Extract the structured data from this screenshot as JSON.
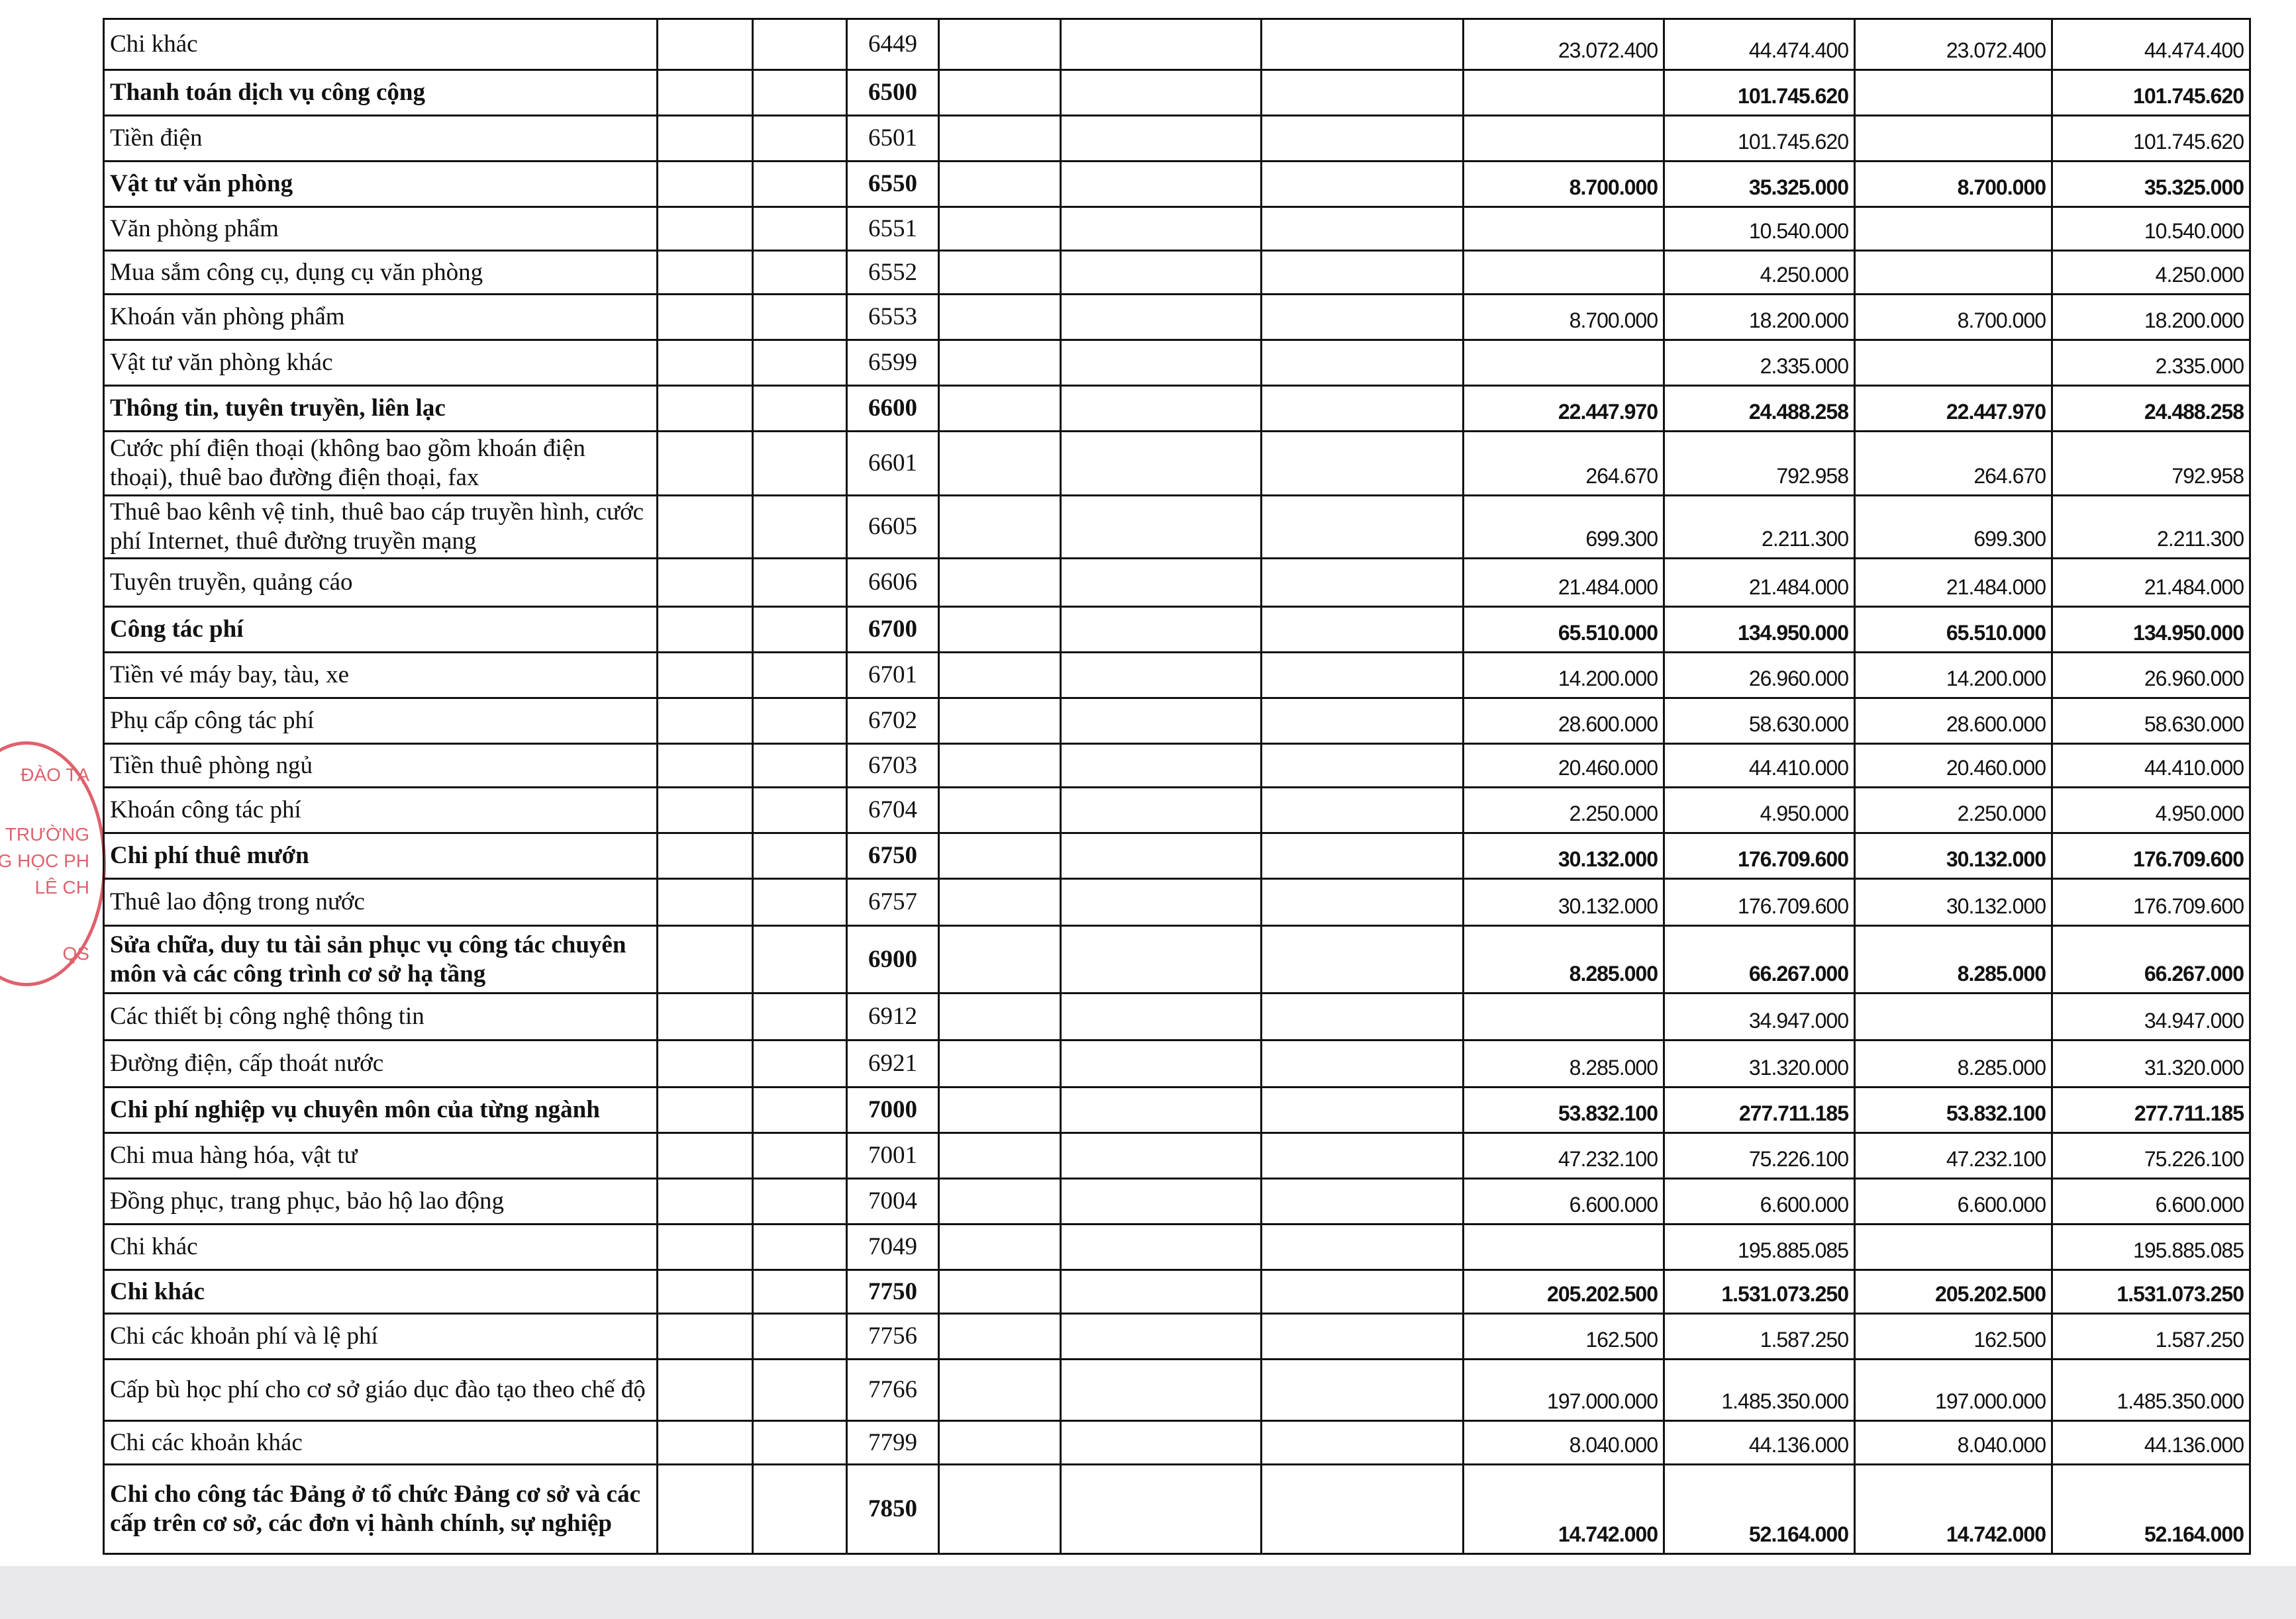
{
  "table": {
    "rows": [
      {
        "label": "Chi khác",
        "code": "6449",
        "values": [
          "23.072.400",
          "44.474.400",
          "23.072.400",
          "44.474.400"
        ]
      },
      {
        "label": "Thanh toán dịch vụ công cộng",
        "code": "6500",
        "values": [
          null,
          "101.745.620",
          null,
          "101.745.620"
        ],
        "bold": true
      },
      {
        "label": "Tiền điện",
        "code": "6501",
        "values": [
          null,
          "101.745.620",
          null,
          "101.745.620"
        ]
      },
      {
        "label": "Vật tư văn phòng",
        "code": "6550",
        "values": [
          "8.700.000",
          "35.325.000",
          "8.700.000",
          "35.325.000"
        ],
        "bold": true
      },
      {
        "label": "Văn phòng phẩm",
        "code": "6551",
        "values": [
          null,
          "10.540.000",
          null,
          "10.540.000"
        ]
      },
      {
        "label": "Mua sắm công cụ, dụng cụ văn phòng",
        "code": "6552",
        "values": [
          null,
          "4.250.000",
          null,
          "4.250.000"
        ]
      },
      {
        "label": "Khoán văn phòng phẩm",
        "code": "6553",
        "values": [
          "8.700.000",
          "18.200.000",
          "8.700.000",
          "18.200.000"
        ]
      },
      {
        "label": "Vật tư văn phòng khác",
        "code": "6599",
        "values": [
          null,
          "2.335.000",
          null,
          "2.335.000"
        ]
      },
      {
        "label": "Thông tin, tuyên truyền, liên lạc",
        "code": "6600",
        "values": [
          "22.447.970",
          "24.488.258",
          "22.447.970",
          "24.488.258"
        ],
        "bold": true
      },
      {
        "label": "Cước phí điện thoại (không bao gồm khoán điện thoại), thuê bao đường điện thoại, fax",
        "code": "6601",
        "values": [
          "264.670",
          "792.958",
          "264.670",
          "792.958"
        ]
      },
      {
        "label": "Thuê bao kênh vệ tinh, thuê bao cáp truyền hình, cước phí Internet, thuê đường truyền mạng",
        "code": "6605",
        "values": [
          "699.300",
          "2.211.300",
          "699.300",
          "2.211.300"
        ]
      },
      {
        "label": "Tuyên truyền, quảng cáo",
        "code": "6606",
        "values": [
          "21.484.000",
          "21.484.000",
          "21.484.000",
          "21.484.000"
        ]
      },
      {
        "label": "Công tác phí",
        "code": "6700",
        "values": [
          "65.510.000",
          "134.950.000",
          "65.510.000",
          "134.950.000"
        ],
        "bold": true
      },
      {
        "label": "Tiền vé máy bay, tàu, xe",
        "code": "6701",
        "values": [
          "14.200.000",
          "26.960.000",
          "14.200.000",
          "26.960.000"
        ]
      },
      {
        "label": "Phụ cấp công tác phí",
        "code": "6702",
        "values": [
          "28.600.000",
          "58.630.000",
          "28.600.000",
          "58.630.000"
        ]
      },
      {
        "label": "Tiền thuê phòng ngủ",
        "code": "6703",
        "values": [
          "20.460.000",
          "44.410.000",
          "20.460.000",
          "44.410.000"
        ]
      },
      {
        "label": "Khoán công tác phí",
        "code": "6704",
        "values": [
          "2.250.000",
          "4.950.000",
          "2.250.000",
          "4.950.000"
        ]
      },
      {
        "label": "Chi phí thuê mướn",
        "code": "6750",
        "values": [
          "30.132.000",
          "176.709.600",
          "30.132.000",
          "176.709.600"
        ],
        "bold": true
      },
      {
        "label": "Thuê lao động trong nước",
        "code": "6757",
        "values": [
          "30.132.000",
          "176.709.600",
          "30.132.000",
          "176.709.600"
        ]
      },
      {
        "label": "Sửa chữa, duy tu tài sản phục vụ công tác chuyên môn và các công trình cơ sở hạ tầng",
        "code": "6900",
        "values": [
          "8.285.000",
          "66.267.000",
          "8.285.000",
          "66.267.000"
        ],
        "bold": true
      },
      {
        "label": "Các thiết bị công nghệ thông tin",
        "code": "6912",
        "values": [
          null,
          "34.947.000",
          null,
          "34.947.000"
        ]
      },
      {
        "label": "Đường điện, cấp thoát nước",
        "code": "6921",
        "values": [
          "8.285.000",
          "31.320.000",
          "8.285.000",
          "31.320.000"
        ]
      },
      {
        "label": "Chi phí nghiệp vụ chuyên môn của từng ngành",
        "code": "7000",
        "values": [
          "53.832.100",
          "277.711.185",
          "53.832.100",
          "277.711.185"
        ],
        "bold": true
      },
      {
        "label": "Chi mua hàng hóa, vật tư",
        "code": "7001",
        "values": [
          "47.232.100",
          "75.226.100",
          "47.232.100",
          "75.226.100"
        ]
      },
      {
        "label": "Đồng phục, trang phục, bảo hộ lao động",
        "code": "7004",
        "values": [
          "6.600.000",
          "6.600.000",
          "6.600.000",
          "6.600.000"
        ]
      },
      {
        "label": "Chi khác",
        "code": "7049",
        "values": [
          null,
          "195.885.085",
          null,
          "195.885.085"
        ]
      },
      {
        "label": "Chi khác",
        "code": "7750",
        "values": [
          "205.202.500",
          "1.531.073.250",
          "205.202.500",
          "1.531.073.250"
        ],
        "bold": true
      },
      {
        "label": "Chi các khoản phí và lệ phí",
        "code": "7756",
        "values": [
          "162.500",
          "1.587.250",
          "162.500",
          "1.587.250"
        ]
      },
      {
        "label": "Cấp bù học phí cho cơ sở giáo dục đào tạo theo chế độ",
        "code": "7766",
        "values": [
          "197.000.000",
          "1.485.350.000",
          "197.000.000",
          "1.485.350.000"
        ]
      },
      {
        "label": "Chi các khoản khác",
        "code": "7799",
        "values": [
          "8.040.000",
          "44.136.000",
          "8.040.000",
          "44.136.000"
        ]
      },
      {
        "label": "Chi cho công tác Đảng ở tổ chức Đảng cơ sở và các cấp trên cơ sở, các đơn vị hành chính, sự nghiệp",
        "code": "7850",
        "values": [
          "14.742.000",
          "52.164.000",
          "14.742.000",
          "52.164.000"
        ],
        "bold": true
      }
    ]
  },
  "stamp": {
    "lines": [
      "ĐÀO TẠ",
      "TRƯỜNG",
      "RUNG HỌC PH",
      "LÊ CH",
      "QS"
    ]
  }
}
